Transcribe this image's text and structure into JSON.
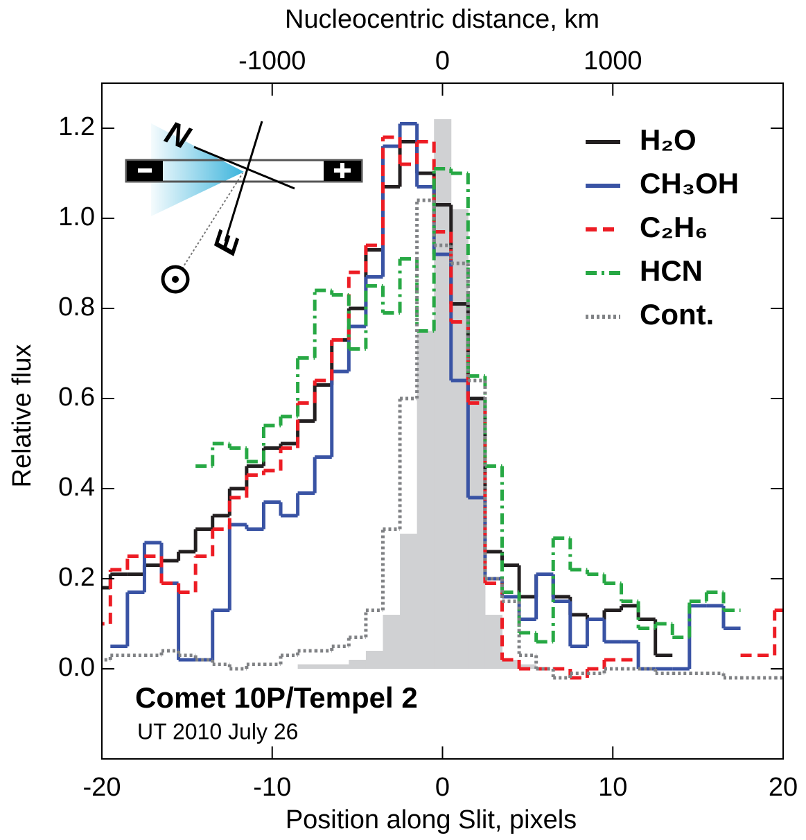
{
  "chart_data": {
    "type": "step",
    "x_label": "Position along Slit, pixels",
    "y_label": "Relative flux",
    "x2_label": "Nucleocentric distance, km",
    "xlim": [
      -20,
      20
    ],
    "xticks": [
      -20,
      -10,
      0,
      10,
      20
    ],
    "x2lim": [
      -2000,
      2000
    ],
    "x2ticks": [
      -1000,
      0,
      1000
    ],
    "ylim": [
      -0.2,
      1.3
    ],
    "yticks": [
      {
        "value": 0,
        "label": "0.0"
      },
      0.2,
      0.4,
      0.6,
      0.8,
      {
        "value": 1,
        "label": "1.0"
      },
      1.2
    ],
    "legend": "top-right",
    "annotations": [
      "Comet 10P/Tempel 2",
      "UT 2010 July 26"
    ],
    "inset_labels": [
      "N",
      "E"
    ],
    "x": [
      -20,
      -19,
      -18,
      -17,
      -16,
      -15,
      -14,
      -13,
      -12,
      -11,
      -10,
      -9,
      -8,
      -7,
      -6,
      -5,
      -4,
      -3,
      -2,
      -1,
      0,
      1,
      2,
      3,
      4,
      5,
      6,
      7,
      8,
      9,
      10,
      11,
      12,
      13,
      14,
      15,
      16,
      17,
      18,
      19,
      20
    ],
    "series": [
      {
        "color": "#d0d1d3",
        "style": "fill",
        "values": [
          0,
          0,
          0,
          0,
          0,
          0,
          0,
          0,
          0,
          0,
          0,
          0,
          0.01,
          0.01,
          0.01,
          0.02,
          0.04,
          0.12,
          0.3,
          0.75,
          1.22,
          1.02,
          0.6,
          0.12,
          0.02,
          0.01,
          0,
          0,
          0,
          0,
          0,
          0,
          0,
          0,
          0,
          0,
          0,
          0,
          0,
          0,
          0
        ]
      },
      {
        "name": "H₂O",
        "color": "#231f20",
        "style": "solid",
        "values": [
          0.18,
          0.21,
          0.21,
          0.23,
          0.24,
          0.26,
          0.31,
          0.34,
          0.4,
          0.45,
          0.49,
          0.5,
          0.55,
          0.63,
          0.73,
          0.8,
          0.93,
          1.07,
          1.17,
          1.1,
          1.03,
          0.81,
          0.6,
          0.26,
          0.23,
          0.16,
          0.21,
          0.16,
          0.12,
          0.11,
          0.13,
          0.14,
          0.11,
          0.03,
          null,
          null,
          null,
          null,
          null,
          null,
          null
        ]
      },
      {
        "name": "CH₃OH",
        "color": "#3953a4",
        "style": "solid",
        "values": [
          null,
          0.05,
          0.17,
          0.28,
          0.19,
          0.02,
          0.02,
          0.13,
          0.32,
          0.31,
          0.37,
          0.34,
          0.39,
          0.47,
          0.66,
          0.76,
          0.87,
          1.16,
          1.21,
          1.07,
          0.92,
          0.64,
          0.38,
          0.2,
          0.16,
          0.11,
          0.21,
          0.15,
          0.05,
          0.11,
          0.06,
          0.06,
          0,
          0,
          0,
          0.14,
          0.14,
          0.09,
          null,
          null,
          null
        ]
      },
      {
        "name": "C₂H₆",
        "color": "#ed1c24",
        "style": "dashed",
        "values": [
          0.1,
          0.22,
          0.25,
          0.25,
          0.19,
          0.17,
          0.25,
          0.31,
          0.38,
          0.43,
          0.44,
          0.49,
          0.59,
          0.64,
          0.73,
          0.88,
          0.94,
          1.18,
          1.12,
          1.17,
          0.97,
          0.77,
          0.59,
          0.19,
          0.02,
          0,
          0,
          0,
          -0.02,
          0,
          0.02,
          0.02,
          null,
          null,
          null,
          null,
          null,
          null,
          0.03,
          0.03,
          0.13
        ]
      },
      {
        "name": "HCN",
        "color": "#27a844",
        "style": "dashdot",
        "values": [
          null,
          null,
          null,
          null,
          null,
          null,
          0.45,
          0.5,
          0.49,
          0.46,
          0.54,
          0.56,
          0.69,
          0.84,
          0.83,
          0.71,
          0.85,
          0.79,
          0.91,
          0.75,
          1.11,
          1.1,
          0.65,
          0.45,
          0.17,
          0.08,
          0.06,
          0.29,
          0.22,
          0.21,
          0.19,
          0.15,
          0.09,
          0.1,
          0.07,
          0.15,
          0.17,
          0.13,
          null,
          null,
          null
        ]
      },
      {
        "name": "Cont.",
        "color": "#808285",
        "style": "dotted",
        "values": [
          0.02,
          0.03,
          0.03,
          0.03,
          0.04,
          0.03,
          0.02,
          0.01,
          0,
          0.01,
          0.01,
          0.03,
          0.04,
          0.04,
          0.05,
          0.07,
          0.13,
          0.31,
          0.6,
          1.04,
          0.94,
          0.9,
          0.64,
          0.2,
          0.15,
          0.03,
          0,
          -0.02,
          -0.01,
          -0.01,
          0,
          0,
          0,
          -0.01,
          -0.01,
          -0.01,
          -0.01,
          -0.02,
          -0.02,
          -0.02,
          -0.02
        ]
      }
    ]
  }
}
